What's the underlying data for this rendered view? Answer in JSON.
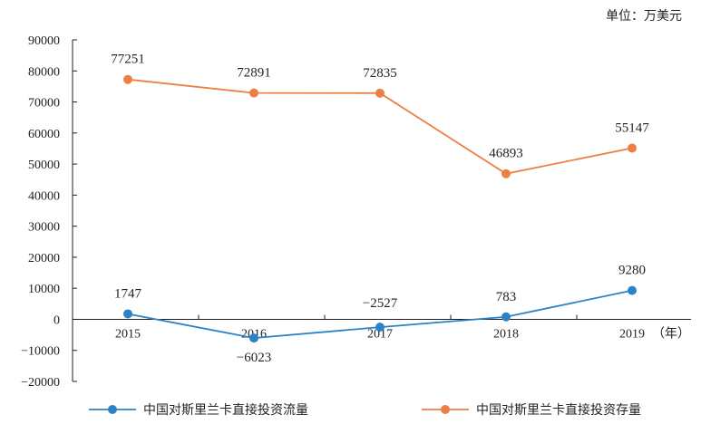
{
  "chart_data": {
    "type": "line",
    "unit_label": "单位：万美元",
    "x_unit": "（年）",
    "categories": [
      "2015",
      "2016",
      "2017",
      "2018",
      "2019"
    ],
    "ylim": [
      -20000,
      90000
    ],
    "yticks": [
      -20000,
      -10000,
      0,
      10000,
      20000,
      30000,
      40000,
      50000,
      60000,
      70000,
      80000,
      90000
    ],
    "grid": false,
    "legend_position": "bottom",
    "series": [
      {
        "name": "中国对斯里兰卡直接投资流量",
        "color": "#2b83c6",
        "values": [
          1747,
          -6023,
          -2527,
          783,
          9280
        ],
        "labels": [
          "1747",
          "−6023",
          "−2527",
          "783",
          "9280"
        ]
      },
      {
        "name": "中国对斯里兰卡直接投资存量",
        "color": "#ec8044",
        "values": [
          77251,
          72891,
          72835,
          46893,
          55147
        ],
        "labels": [
          "77251",
          "72891",
          "72835",
          "46893",
          "55147"
        ]
      }
    ]
  }
}
